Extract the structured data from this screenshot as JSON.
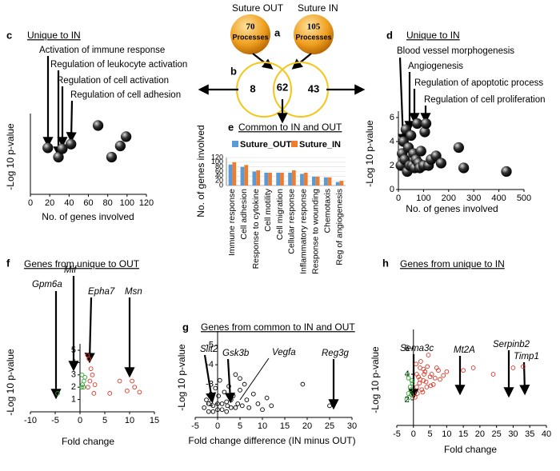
{
  "diagram": {
    "panel_a": "a",
    "panel_b": "b",
    "sets": [
      {
        "name": "Suture OUT",
        "count": 70,
        "unit": "Processes"
      },
      {
        "name": "Suture IN",
        "count": 105,
        "unit": "Processes"
      }
    ],
    "venn": {
      "out_only": 8,
      "common": 62,
      "in_only": 43
    }
  },
  "chart_data": [
    {
      "type": "scatter",
      "panel": "c",
      "title": "Unique to IN",
      "xlabel": "No. of genes involved",
      "ylabel": "-Log 10 p-value",
      "annotations": [
        "Activation of immune response",
        "Regulation of leukocyte activation",
        "Regulation of cell  activation",
        "Regulation of cell adhesion"
      ],
      "xlim": [
        0,
        120
      ],
      "xticks": [
        0,
        20,
        40,
        60,
        80,
        100,
        120
      ],
      "ylim": [
        0,
        4
      ],
      "marker": "sphere",
      "series": [
        {
          "color": "#000000",
          "x": [
            18,
            29,
            33,
            42,
            70,
            84,
            93,
            99
          ],
          "values": [
            2.5,
            2.0,
            2.45,
            2.7,
            3.7,
            2.0,
            2.6,
            3.1
          ]
        }
      ]
    },
    {
      "type": "scatter",
      "panel": "d",
      "title": "Unique to IN",
      "xlabel": "No. of genes involved",
      "ylabel": "-Log 10 p-value",
      "annotations": [
        "Blood vessel morphogenesis",
        "Angiogenesis",
        "Regulation of apoptotic process",
        "Regulation of cell proliferation"
      ],
      "xlim": [
        0,
        500
      ],
      "xticks": [
        0,
        100,
        200,
        300,
        400,
        500
      ],
      "ylim": [
        0,
        6
      ],
      "yticks": [
        0,
        2,
        4,
        6
      ],
      "marker": "sphere",
      "series": [
        {
          "color": "#000000",
          "x": [
            10,
            15,
            20,
            25,
            30,
            35,
            40,
            45,
            50,
            55,
            60,
            65,
            70,
            75,
            80,
            85,
            90,
            100,
            105,
            110,
            120,
            130,
            150,
            170,
            240,
            260,
            430
          ],
          "values": [
            2.0,
            3.0,
            4.0,
            2.5,
            5.0,
            1.5,
            3.5,
            2.0,
            4.5,
            2.0,
            3.0,
            1.8,
            2.5,
            5.5,
            2.2,
            1.8,
            3.2,
            2.0,
            4.8,
            5.5,
            2.0,
            2.5,
            2.8,
            2.2,
            3.5,
            1.8,
            1.5
          ]
        }
      ]
    },
    {
      "type": "bar",
      "panel": "e",
      "title": "Common to IN and OUT",
      "ylabel": "No. of genes involved",
      "categories": [
        "Immune response",
        "Cell adhesion",
        "Response to cytokine",
        "Cell motility",
        "Cell migration",
        "Cellular response",
        "Inflammatory response",
        "Response to wounding",
        "Chemotaxis",
        "Reg of angiogenesis"
      ],
      "ylim": [
        0,
        120
      ],
      "yticks": [
        0,
        20,
        40,
        60,
        80,
        100,
        120
      ],
      "series": [
        {
          "name": "Suture_OUT",
          "color": "#5b9bd5",
          "values": [
            90,
            80,
            60,
            55,
            55,
            55,
            50,
            38,
            35,
            15
          ]
        },
        {
          "name": "Suture_IN",
          "color": "#ed7d31",
          "values": [
            100,
            88,
            65,
            55,
            55,
            65,
            55,
            38,
            35,
            20
          ]
        }
      ]
    },
    {
      "type": "scatter",
      "panel": "f",
      "title": "Genes from unique to OUT",
      "xlabel": "Fold change",
      "ylabel": "-Log 10 p-value",
      "annotations": [
        "Gpm6a",
        "Mif",
        "Epha7",
        "Msn"
      ],
      "xlim": [
        -10,
        15
      ],
      "xticks": [
        -10,
        -5,
        0,
        5,
        10,
        15
      ],
      "ylim": [
        0,
        5
      ],
      "yticks": [
        1,
        2,
        3,
        4,
        5
      ],
      "marker": "open",
      "series": [
        {
          "color": "#2ca02c",
          "x": [
            -4.5,
            0.3,
            0.5,
            0.8,
            1.0,
            0.4,
            0.7
          ],
          "values": [
            1.5,
            2.0,
            2.2,
            2.5,
            2.8,
            3.0,
            2.0
          ]
        },
        {
          "color": "#e03020",
          "x": [
            1.5,
            1.8,
            2.2,
            2.5,
            2.0,
            1.6,
            2.8,
            3.0,
            6.0,
            8.0,
            10.5,
            11.0,
            12.0,
            9.5
          ],
          "values": [
            4.6,
            4.3,
            3.5,
            3.0,
            2.5,
            2.0,
            1.5,
            2.2,
            1.5,
            2.5,
            2.5,
            2.0,
            1.6,
            1.7
          ]
        }
      ]
    },
    {
      "type": "scatter",
      "panel": "g",
      "title": "Genes from common to IN and OUT",
      "xlabel": "Fold change difference (IN minus OUT)",
      "ylabel": "-Log 10 p-value",
      "annotations": [
        "Slit2",
        "Gsk3b",
        "Vegfa",
        "Reg3g"
      ],
      "xlim": [
        -5,
        30
      ],
      "xticks": [
        -5,
        0,
        5,
        10,
        15,
        20,
        25,
        30
      ],
      "ylim": [
        -1.3,
        -5.4
      ],
      "yticks": [
        -5,
        -4,
        -3,
        -2
      ],
      "marker": "open",
      "series": [
        {
          "color": "#000000",
          "x": [
            -3,
            -2.5,
            -2,
            -1.5,
            -1,
            -0.5,
            0,
            0.5,
            1,
            1.5,
            2,
            2.5,
            3,
            3.5,
            4,
            4.5,
            5,
            5.5,
            6,
            6.5,
            7,
            8,
            9,
            10,
            11,
            12,
            -1,
            0,
            1,
            2,
            3,
            4,
            -2,
            0.2,
            2.2,
            5,
            19,
            25
          ],
          "values": [
            -1.8,
            -2.2,
            -1.6,
            -2.5,
            -1.9,
            -2.8,
            -2.0,
            -3.2,
            -1.7,
            -2.6,
            -2.1,
            -2.9,
            -1.8,
            -2.4,
            -3.5,
            -2.0,
            -2.7,
            -1.9,
            -3.0,
            -2.2,
            -1.8,
            -2.5,
            -2.0,
            -1.7,
            -2.3,
            -1.9,
            -1.6,
            -1.7,
            -2.0,
            -1.6,
            -2.2,
            -1.8,
            -2.0,
            -2.4,
            -1.9,
            -3.3,
            -3.0,
            -1.9
          ]
        }
      ]
    },
    {
      "type": "scatter",
      "panel": "h",
      "title": "Genes from unique to IN",
      "xlabel": "Fold change",
      "ylabel": "-Log 10 p-value",
      "annotations": [
        "Sema3c",
        "Mt2A",
        "Serpinb2",
        "Timp1"
      ],
      "xlim": [
        -5,
        40
      ],
      "xticks": [
        -5,
        0,
        5,
        10,
        15,
        20,
        25,
        30,
        35,
        40
      ],
      "ylim": [
        0,
        7
      ],
      "yticks": [
        2,
        4,
        6
      ],
      "marker": "open",
      "series": [
        {
          "color": "#2ca02c",
          "x": [
            -2,
            -1.5,
            -1,
            -0.5,
            -1.8,
            -1.2,
            -0.8,
            -0.3,
            -1.5,
            -0.6
          ],
          "values": [
            2.0,
            2.5,
            3.0,
            3.5,
            4.0,
            2.2,
            2.8,
            3.3,
            3.7,
            2.4
          ]
        },
        {
          "color": "#e03020",
          "x": [
            0.5,
            1,
            1.5,
            2,
            2.5,
            3,
            3.5,
            4,
            4.5,
            5,
            5.5,
            6,
            7,
            8,
            9,
            10,
            0.8,
            1.2,
            1.8,
            2.2,
            2.8,
            3.2,
            3.8,
            4.2,
            5.2,
            6.5,
            7.5,
            1,
            2,
            3,
            15,
            18,
            24,
            30,
            33
          ],
          "values": [
            2.2,
            3.0,
            3.8,
            4.5,
            2.8,
            3.5,
            4.2,
            3.0,
            5.5,
            3.8,
            4.0,
            3.2,
            4.5,
            3.6,
            3.9,
            4.2,
            4.8,
            2.5,
            3.3,
            5.0,
            2.6,
            4.0,
            3.4,
            4.6,
            3.1,
            3.7,
            4.3,
            4.0,
            3.6,
            4.4,
            4.3,
            4.5,
            4.0,
            4.5,
            4.6
          ]
        }
      ]
    }
  ]
}
